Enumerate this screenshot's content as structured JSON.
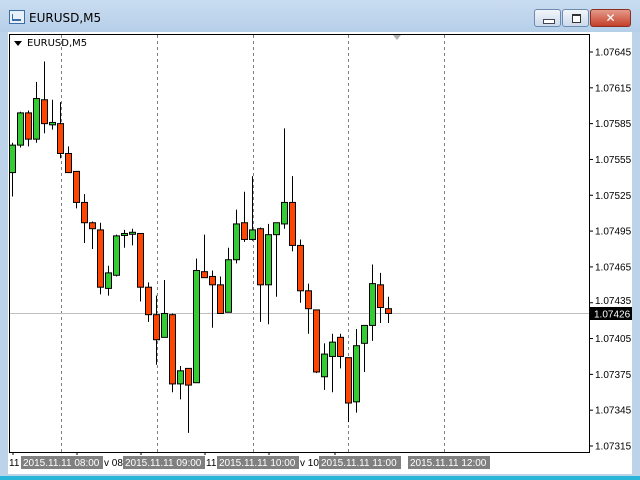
{
  "window": {
    "title": "EURUSD,M5",
    "close_glyph": "✕"
  },
  "chart_data": {
    "type": "candlestick",
    "symbol_label": "EURUSD,M5",
    "ylim": [
      1.07315,
      1.07645
    ],
    "y_ticks": [
      "1.07645",
      "1.07615",
      "1.07585",
      "1.07555",
      "1.07525",
      "1.07495",
      "1.07465",
      "1.07435",
      "1.07405",
      "1.07375",
      "1.07345",
      "1.07315"
    ],
    "current_price": "1.07426",
    "time_labels": [
      "2015.11.11 08:00",
      "2015.11.11 09:00",
      "2015.11.11 10:00",
      "2015.11.11 11:00",
      "2015.11.11 12:00"
    ],
    "time_partials": [
      "11",
      "v 08",
      "11",
      "v 10"
    ],
    "grid": "vertical dashed",
    "colors": {
      "bull": "#33cc33",
      "bear": "#ff4500",
      "outline": "#000000",
      "bid_line": "#c0c0c0"
    },
    "candles_ohlc": [
      [
        1.07544,
        1.07569,
        1.07524,
        1.07567
      ],
      [
        1.07567,
        1.07595,
        1.07565,
        1.07594
      ],
      [
        1.07594,
        1.07596,
        1.07566,
        1.07572
      ],
      [
        1.07572,
        1.0762,
        1.07569,
        1.07606
      ],
      [
        1.07605,
        1.07637,
        1.07577,
        1.07585
      ],
      [
        1.07584,
        1.07605,
        1.0758,
        1.07586
      ],
      [
        1.07585,
        1.07603,
        1.07556,
        1.0756
      ],
      [
        1.0756,
        1.07566,
        1.07544,
        1.07544
      ],
      [
        1.07545,
        1.07545,
        1.07514,
        1.07519
      ],
      [
        1.07519,
        1.07526,
        1.07485,
        1.07502
      ],
      [
        1.07502,
        1.07503,
        1.0748,
        1.07497
      ],
      [
        1.07496,
        1.07502,
        1.07442,
        1.07448
      ],
      [
        1.07447,
        1.07466,
        1.07441,
        1.0746
      ],
      [
        1.07458,
        1.07492,
        1.07457,
        1.07491
      ],
      [
        1.07492,
        1.07496,
        1.07481,
        1.07493
      ],
      [
        1.07493,
        1.07497,
        1.07483,
        1.07494
      ],
      [
        1.07493,
        1.07493,
        1.07436,
        1.07448
      ],
      [
        1.07448,
        1.07452,
        1.07419,
        1.07425
      ],
      [
        1.07425,
        1.07441,
        1.07383,
        1.07404
      ],
      [
        1.07406,
        1.07454,
        1.07406,
        1.07426
      ],
      [
        1.07425,
        1.07426,
        1.0736,
        1.07367
      ],
      [
        1.07367,
        1.07382,
        1.07354,
        1.07378
      ],
      [
        1.0738,
        1.0738,
        1.07326,
        1.07366
      ],
      [
        1.07368,
        1.07472,
        1.07368,
        1.07462
      ],
      [
        1.07461,
        1.07492,
        1.07456,
        1.07456
      ],
      [
        1.07457,
        1.07462,
        1.07414,
        1.0745
      ],
      [
        1.0745,
        1.07457,
        1.07426,
        1.07426
      ],
      [
        1.07427,
        1.07481,
        1.07427,
        1.07471
      ],
      [
        1.07471,
        1.07513,
        1.07468,
        1.07501
      ],
      [
        1.07502,
        1.07528,
        1.07486,
        1.07488
      ],
      [
        1.07488,
        1.07541,
        1.07487,
        1.07496
      ],
      [
        1.07497,
        1.07498,
        1.07419,
        1.0745
      ],
      [
        1.0745,
        1.07501,
        1.07417,
        1.07492
      ],
      [
        1.07492,
        1.07502,
        1.0744,
        1.07502
      ],
      [
        1.07501,
        1.07581,
        1.07497,
        1.07519
      ],
      [
        1.07519,
        1.07541,
        1.07478,
        1.07483
      ],
      [
        1.07483,
        1.07488,
        1.07435,
        1.07445
      ],
      [
        1.07445,
        1.07451,
        1.07409,
        1.0743
      ],
      [
        1.07429,
        1.07429,
        1.07376,
        1.07377
      ],
      [
        1.07373,
        1.07401,
        1.07362,
        1.07392
      ],
      [
        1.0739,
        1.07409,
        1.0736,
        1.07402
      ],
      [
        1.07406,
        1.07409,
        1.0738,
        1.0739
      ],
      [
        1.07389,
        1.07389,
        1.07335,
        1.07351
      ],
      [
        1.07352,
        1.07413,
        1.07343,
        1.07399
      ],
      [
        1.07401,
        1.07416,
        1.07377,
        1.07416
      ],
      [
        1.07416,
        1.07467,
        1.07403,
        1.07451
      ],
      [
        1.0745,
        1.0746,
        1.07418,
        1.07431
      ],
      [
        1.0743,
        1.0744,
        1.07418,
        1.07426
      ]
    ]
  }
}
